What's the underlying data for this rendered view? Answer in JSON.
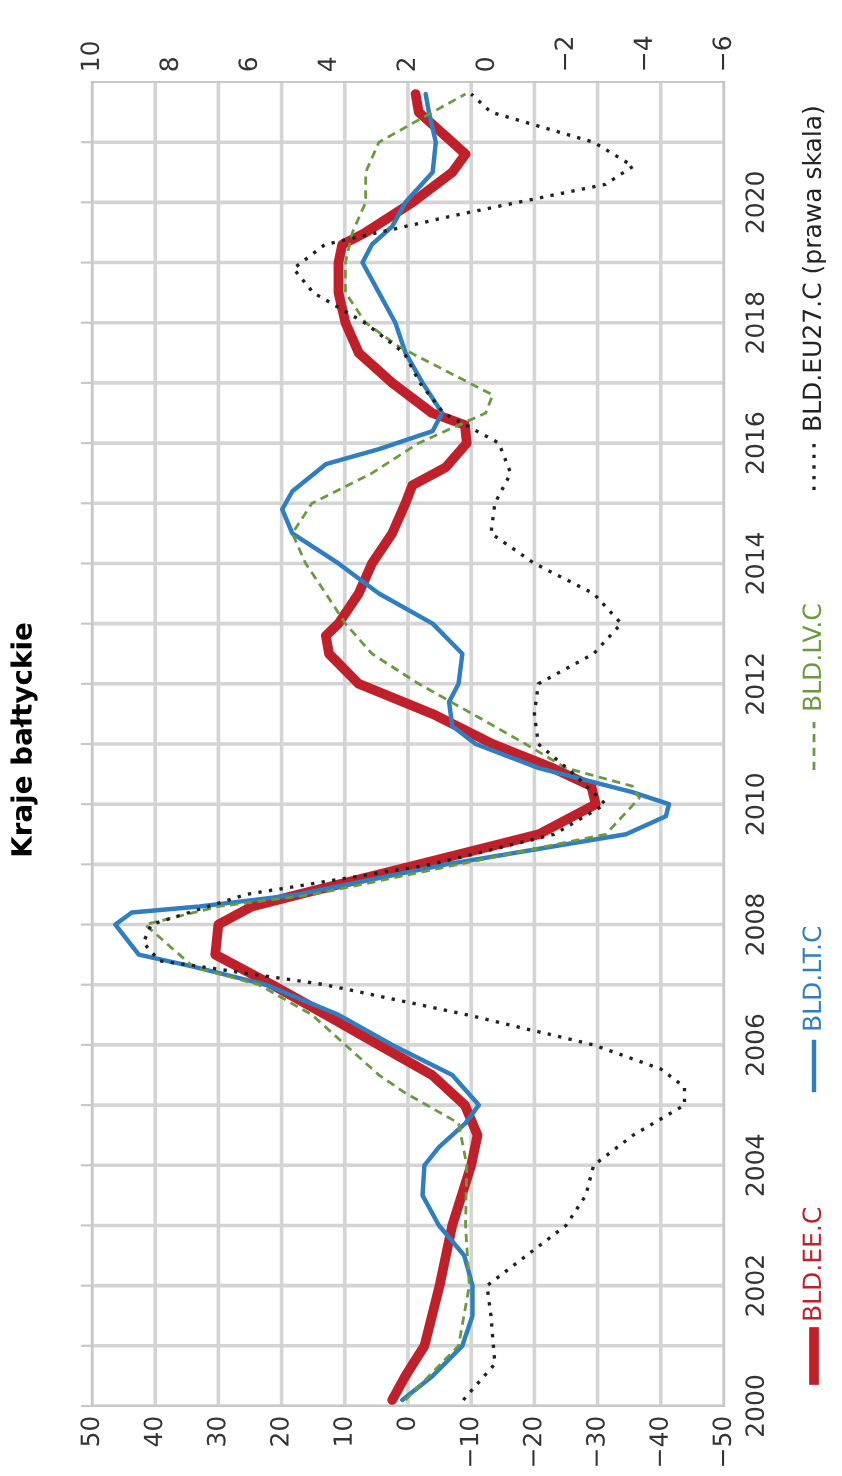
{
  "chart_data": {
    "type": "line",
    "title": "Kraje bałtyckie",
    "ylim": [
      2000,
      2022
    ],
    "yticks": [
      2000,
      {
        "value": 2001,
        "label": null
      },
      2002,
      {
        "value": 2003,
        "label": null
      },
      2004,
      {
        "value": 2005,
        "label": null
      },
      2006,
      {
        "value": 2007,
        "label": null
      },
      2008,
      {
        "value": 2009,
        "label": null
      },
      2010,
      {
        "value": 2011,
        "label": null
      },
      2012,
      {
        "value": 2013,
        "label": null
      },
      2014,
      {
        "value": 2015,
        "label": null
      },
      2016,
      {
        "value": 2017,
        "label": null
      },
      2018,
      {
        "value": 2019,
        "label": null
      },
      2020,
      {
        "value": 2021,
        "label": null
      }
    ],
    "xlim": [
      50,
      -50
    ],
    "xticks": [
      50,
      40,
      30,
      20,
      10,
      0,
      {
        "value": -10,
        "label": "−10"
      },
      {
        "value": -20,
        "label": "−20"
      },
      {
        "value": -30,
        "label": "−30"
      },
      {
        "value": -40,
        "label": "−40"
      },
      {
        "value": -50,
        "label": "−50"
      }
    ],
    "x2lim": [
      10,
      -6
    ],
    "x2ticks": [
      10,
      8,
      6,
      4,
      2,
      0,
      {
        "value": -2,
        "label": "−2"
      },
      {
        "value": -4,
        "label": "−4"
      },
      {
        "value": -6,
        "label": "−6"
      }
    ],
    "grid": true,
    "legend": "right",
    "series": [
      {
        "name": "BLD.EE.C",
        "color": "#c0202a",
        "line_style": "solid",
        "values": [
          2000.1,
          2000.5,
          2001,
          2002,
          2003,
          2004,
          2004.5,
          2005,
          2005.5,
          2006,
          2006.5,
          2007,
          2007.5,
          2008,
          2008.3,
          2008.5,
          2009,
          2009.5,
          2010,
          2010.3,
          2010.6,
          2011,
          2011.5,
          2012,
          2012.5,
          2012.8,
          2013,
          2013.5,
          2014,
          2014.5,
          2015,
          2015.3,
          2015.6,
          2016,
          2016.3,
          2016.5,
          2017,
          2017.5,
          2018,
          2018.5,
          2019,
          2019.3,
          2019.5,
          2020,
          2020.5,
          2020.8,
          2021,
          2021.5,
          2021.8
        ],
        "x": [
          2.5,
          0.4,
          -2.6,
          -5,
          -7,
          -10,
          -11,
          -9,
          -3.8,
          4.6,
          13,
          21.5,
          30.5,
          30,
          24.7,
          17.3,
          -1.7,
          -20.7,
          -29.7,
          -29,
          -22.9,
          -13.4,
          -3.9,
          7.8,
          12.5,
          13,
          11,
          7.8,
          5.7,
          2.5,
          0.4,
          -0.7,
          -6,
          -9.3,
          -9,
          -3.8,
          2.5,
          7.8,
          9.9,
          11,
          11,
          10.4,
          6.7,
          -0.7,
          -7,
          -9.1,
          -7,
          -1.7,
          -1.2
        ]
      },
      {
        "name": "BLD.LT.C",
        "color": "#2e7ec1",
        "line_style": "solid",
        "values": [
          2000.1,
          2000.5,
          2001,
          2001.5,
          2002,
          2002.5,
          2003,
          2003.5,
          2004,
          2004.3,
          2004.7,
          2005,
          2005.5,
          2006,
          2006.5,
          2007,
          2007.3,
          2007.5,
          2008,
          2008.2,
          2008.3,
          2008.5,
          2009,
          2009.5,
          2009.8,
          2010,
          2010.2,
          2010.6,
          2011,
          2011.3,
          2011.7,
          2012,
          2012.5,
          2013,
          2013.5,
          2014,
          2014.5,
          2014.9,
          2015.2,
          2015.65,
          2015.9,
          2016.2,
          2016.5,
          2017,
          2017.5,
          2018,
          2018.5,
          2019,
          2019.3,
          2019.6,
          2020,
          2020.5,
          2021,
          2021.5,
          2021.8
        ],
        "x": [
          0.9,
          -3.9,
          -8.6,
          -10.2,
          -10.2,
          -8.9,
          -4.9,
          -2.3,
          -2.6,
          -4.9,
          -9.1,
          -11.2,
          -7,
          2.5,
          11,
          22.5,
          34,
          42.6,
          46.3,
          43.7,
          33,
          17.3,
          -6,
          -34.5,
          -40.8,
          -41.3,
          -35.5,
          -20.7,
          -10.7,
          -7,
          -6.5,
          -8,
          -8.6,
          -3.9,
          4.6,
          11,
          18.3,
          19.9,
          18.3,
          13,
          4.6,
          -3.9,
          -5.4,
          -2.3,
          0.4,
          2,
          4.6,
          7.2,
          5.7,
          2.5,
          0.4,
          -3.9,
          -4.4,
          -3.3,
          -2.8
        ]
      },
      {
        "name": "BLD.LV.C",
        "color": "#6a9a3e",
        "line_style": "dashed",
        "values": [
          2000.1,
          2001,
          2002,
          2003,
          2004,
          2004.7,
          2005.2,
          2005.5,
          2006,
          2006.5,
          2007,
          2007.3,
          2008,
          2008.3,
          2008.5,
          2009,
          2009.5,
          2010.1,
          2010.3,
          2010.6,
          2011,
          2011.5,
          2012,
          2012.5,
          2013,
          2013.5,
          2014,
          2014.5,
          2015,
          2015.5,
          2016,
          2016.5,
          2016.8,
          2017.2,
          2017.6,
          2018,
          2018.5,
          2019,
          2019.5,
          2020,
          2020.5,
          2021,
          2021.5,
          2021.8
        ],
        "x": [
          0.4,
          -8,
          -9.7,
          -9.1,
          -9.3,
          -8,
          0.4,
          4.6,
          9.9,
          15.2,
          23.6,
          34,
          41.6,
          30,
          15,
          -8,
          -31.3,
          -36.6,
          -35.5,
          -25,
          -18.6,
          -10.2,
          -1.7,
          5.7,
          9.9,
          13,
          16.2,
          18.3,
          15.2,
          5.7,
          -1.7,
          -12.3,
          -13.4,
          -6,
          1.4,
          6.7,
          9.9,
          9.9,
          8.8,
          6.7,
          6.7,
          4.6,
          -3.9,
          -9.1
        ]
      },
      {
        "name": "BLD.EU27.C (prawa skala)",
        "color": "#222222",
        "line_style": "dotted",
        "axis": "x2",
        "values": [
          2000.1,
          2000.7,
          2001.5,
          2002,
          2002.5,
          2003,
          2003.5,
          2004,
          2004.5,
          2005,
          2005.3,
          2005.6,
          2006,
          2006.5,
          2007,
          2007.4,
          2007.7,
          2008,
          2008.5,
          2009,
          2009.5,
          2010,
          2010.5,
          2011,
          2011.5,
          2012,
          2012.5,
          2013,
          2013.5,
          2014,
          2014.5,
          2015,
          2015.5,
          2016,
          2016.5,
          2017,
          2017.5,
          2018,
          2018.5,
          2018.9,
          2019.3,
          2019.8,
          2020.3,
          2020.6,
          2021,
          2021.5,
          2021.8
        ],
        "x": [
          0.6,
          -0.2,
          -0.1,
          0,
          -1,
          -2,
          -2.5,
          -2.7,
          -3.7,
          -5,
          -5,
          -4.4,
          -2.7,
          0.5,
          4.1,
          8.3,
          8.7,
          8.5,
          6.1,
          1.4,
          -1.7,
          -3,
          -2.2,
          -1.3,
          -1.2,
          -1.3,
          -2.7,
          -3.4,
          -2.7,
          -1.2,
          -0.1,
          -0.2,
          -0.6,
          -0.3,
          1.1,
          1.7,
          2.1,
          3.1,
          4.4,
          4.9,
          4.1,
          0.7,
          -3,
          -3.7,
          -2.7,
          -0.1,
          0.4
        ]
      }
    ]
  }
}
